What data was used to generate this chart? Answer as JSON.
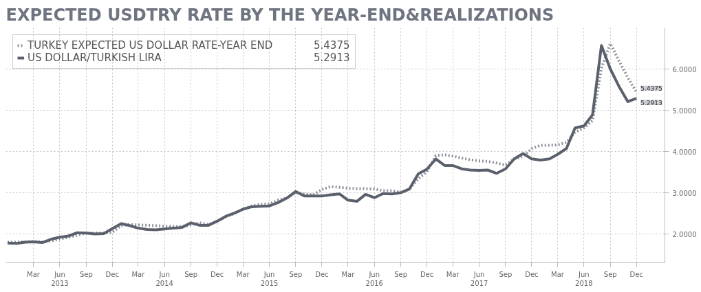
{
  "chart_data": {
    "type": "line",
    "title": "EXPECTED USDTRY RATE BY THE YEAR-END&REALIZATIONS",
    "x": [
      "2012-12",
      "2013-01",
      "2013-02",
      "2013-03",
      "2013-04",
      "2013-05",
      "2013-06",
      "2013-07",
      "2013-08",
      "2013-09",
      "2013-10",
      "2013-11",
      "2013-12",
      "2014-01",
      "2014-02",
      "2014-03",
      "2014-04",
      "2014-05",
      "2014-06",
      "2014-07",
      "2014-08",
      "2014-09",
      "2014-10",
      "2014-11",
      "2014-12",
      "2015-01",
      "2015-02",
      "2015-03",
      "2015-04",
      "2015-05",
      "2015-06",
      "2015-07",
      "2015-08",
      "2015-09",
      "2015-10",
      "2015-11",
      "2015-12",
      "2016-01",
      "2016-02",
      "2016-03",
      "2016-04",
      "2016-05",
      "2016-06",
      "2016-07",
      "2016-08",
      "2016-09",
      "2016-10",
      "2016-11",
      "2016-12",
      "2017-01",
      "2017-02",
      "2017-03",
      "2017-04",
      "2017-05",
      "2017-06",
      "2017-07",
      "2017-08",
      "2017-09",
      "2017-10",
      "2017-11",
      "2017-12",
      "2018-01",
      "2018-02",
      "2018-03",
      "2018-04",
      "2018-05",
      "2018-06",
      "2018-07",
      "2018-08",
      "2018-09",
      "2018-10",
      "2018-11",
      "2018-12"
    ],
    "series": [
      {
        "name": "TURKEY EXPECTED US DOLLAR RATE-YEAR END",
        "color": "#8c919b",
        "line_style": "dotted",
        "values": [
          1.8,
          1.8,
          1.81,
          1.82,
          1.8,
          1.83,
          1.88,
          1.92,
          1.97,
          2.02,
          2.02,
          2.02,
          2.04,
          2.2,
          2.23,
          2.22,
          2.21,
          2.2,
          2.19,
          2.18,
          2.18,
          2.22,
          2.27,
          2.23,
          2.3,
          2.42,
          2.5,
          2.6,
          2.68,
          2.72,
          2.73,
          2.82,
          2.87,
          3.0,
          2.97,
          2.95,
          3.08,
          3.15,
          3.13,
          3.11,
          3.1,
          3.1,
          3.09,
          3.05,
          3.05,
          3.01,
          3.09,
          3.34,
          3.51,
          3.9,
          3.92,
          3.89,
          3.84,
          3.8,
          3.77,
          3.76,
          3.72,
          3.67,
          3.82,
          3.88,
          4.07,
          4.15,
          4.15,
          4.16,
          4.22,
          4.47,
          4.57,
          4.75,
          6.02,
          6.62,
          6.2,
          5.79,
          5.4375
        ]
      },
      {
        "name": "US DOLLAR/TURKISH LIRA",
        "color": "#5b616c",
        "line_style": "solid",
        "values": [
          1.78,
          1.77,
          1.8,
          1.81,
          1.79,
          1.87,
          1.92,
          1.95,
          2.03,
          2.02,
          2.0,
          2.01,
          2.13,
          2.25,
          2.2,
          2.14,
          2.11,
          2.1,
          2.12,
          2.14,
          2.16,
          2.27,
          2.21,
          2.21,
          2.31,
          2.43,
          2.51,
          2.6,
          2.66,
          2.67,
          2.68,
          2.76,
          2.87,
          3.03,
          2.92,
          2.92,
          2.92,
          2.95,
          2.97,
          2.82,
          2.79,
          2.96,
          2.88,
          2.98,
          2.97,
          3.0,
          3.09,
          3.46,
          3.57,
          3.82,
          3.66,
          3.66,
          3.58,
          3.55,
          3.54,
          3.55,
          3.47,
          3.58,
          3.82,
          3.95,
          3.82,
          3.79,
          3.82,
          3.93,
          4.07,
          4.57,
          4.62,
          4.89,
          6.57,
          6.0,
          5.58,
          5.21,
          5.2913
        ]
      }
    ],
    "annotations": [
      {
        "text": "5.4375",
        "x": "2018-12",
        "y": 5.4375
      },
      {
        "text": "5.2913",
        "x": "2018-12",
        "y": 5.2913
      }
    ],
    "xlim": [
      "2012-11-25",
      "2019-03-10"
    ],
    "xticks": [
      {
        "value": "2013-03",
        "label": "Mar"
      },
      {
        "value": "2013-06",
        "label": "Jun\n2013"
      },
      {
        "value": "2013-09",
        "label": "Sep"
      },
      {
        "value": "2013-12",
        "label": "Dec"
      },
      {
        "value": "2014-03",
        "label": "Mar"
      },
      {
        "value": "2014-06",
        "label": "Jun\n2014"
      },
      {
        "value": "2014-09",
        "label": "Sep"
      },
      {
        "value": "2014-12",
        "label": "Dec"
      },
      {
        "value": "2015-03",
        "label": "Mar"
      },
      {
        "value": "2015-06",
        "label": "Jun\n2015"
      },
      {
        "value": "2015-09",
        "label": "Sep"
      },
      {
        "value": "2015-12",
        "label": "Dec"
      },
      {
        "value": "2016-03",
        "label": "Mar"
      },
      {
        "value": "2016-06",
        "label": "Jun\n2016"
      },
      {
        "value": "2016-09",
        "label": "Sep"
      },
      {
        "value": "2016-12",
        "label": "Dec"
      },
      {
        "value": "2017-03",
        "label": "Mar"
      },
      {
        "value": "2017-06",
        "label": "Jun\n2017"
      },
      {
        "value": "2017-09",
        "label": "Sep"
      },
      {
        "value": "2017-12",
        "label": "Dec"
      },
      {
        "value": "2018-03",
        "label": "Mar"
      },
      {
        "value": "2018-06",
        "label": "Jun\n2018"
      },
      {
        "value": "2018-09",
        "label": "Sep"
      },
      {
        "value": "2018-12",
        "label": "Dec"
      }
    ],
    "ylim": [
      1.3,
      7.0
    ],
    "yticks": [
      {
        "value": 2,
        "label": "2.0000"
      },
      {
        "value": 3,
        "label": "3.0000"
      },
      {
        "value": 4,
        "label": "4.0000"
      },
      {
        "value": 5,
        "label": "5.0000"
      },
      {
        "value": 6,
        "label": "6.0000"
      }
    ],
    "grid": true,
    "legend": "top left"
  }
}
